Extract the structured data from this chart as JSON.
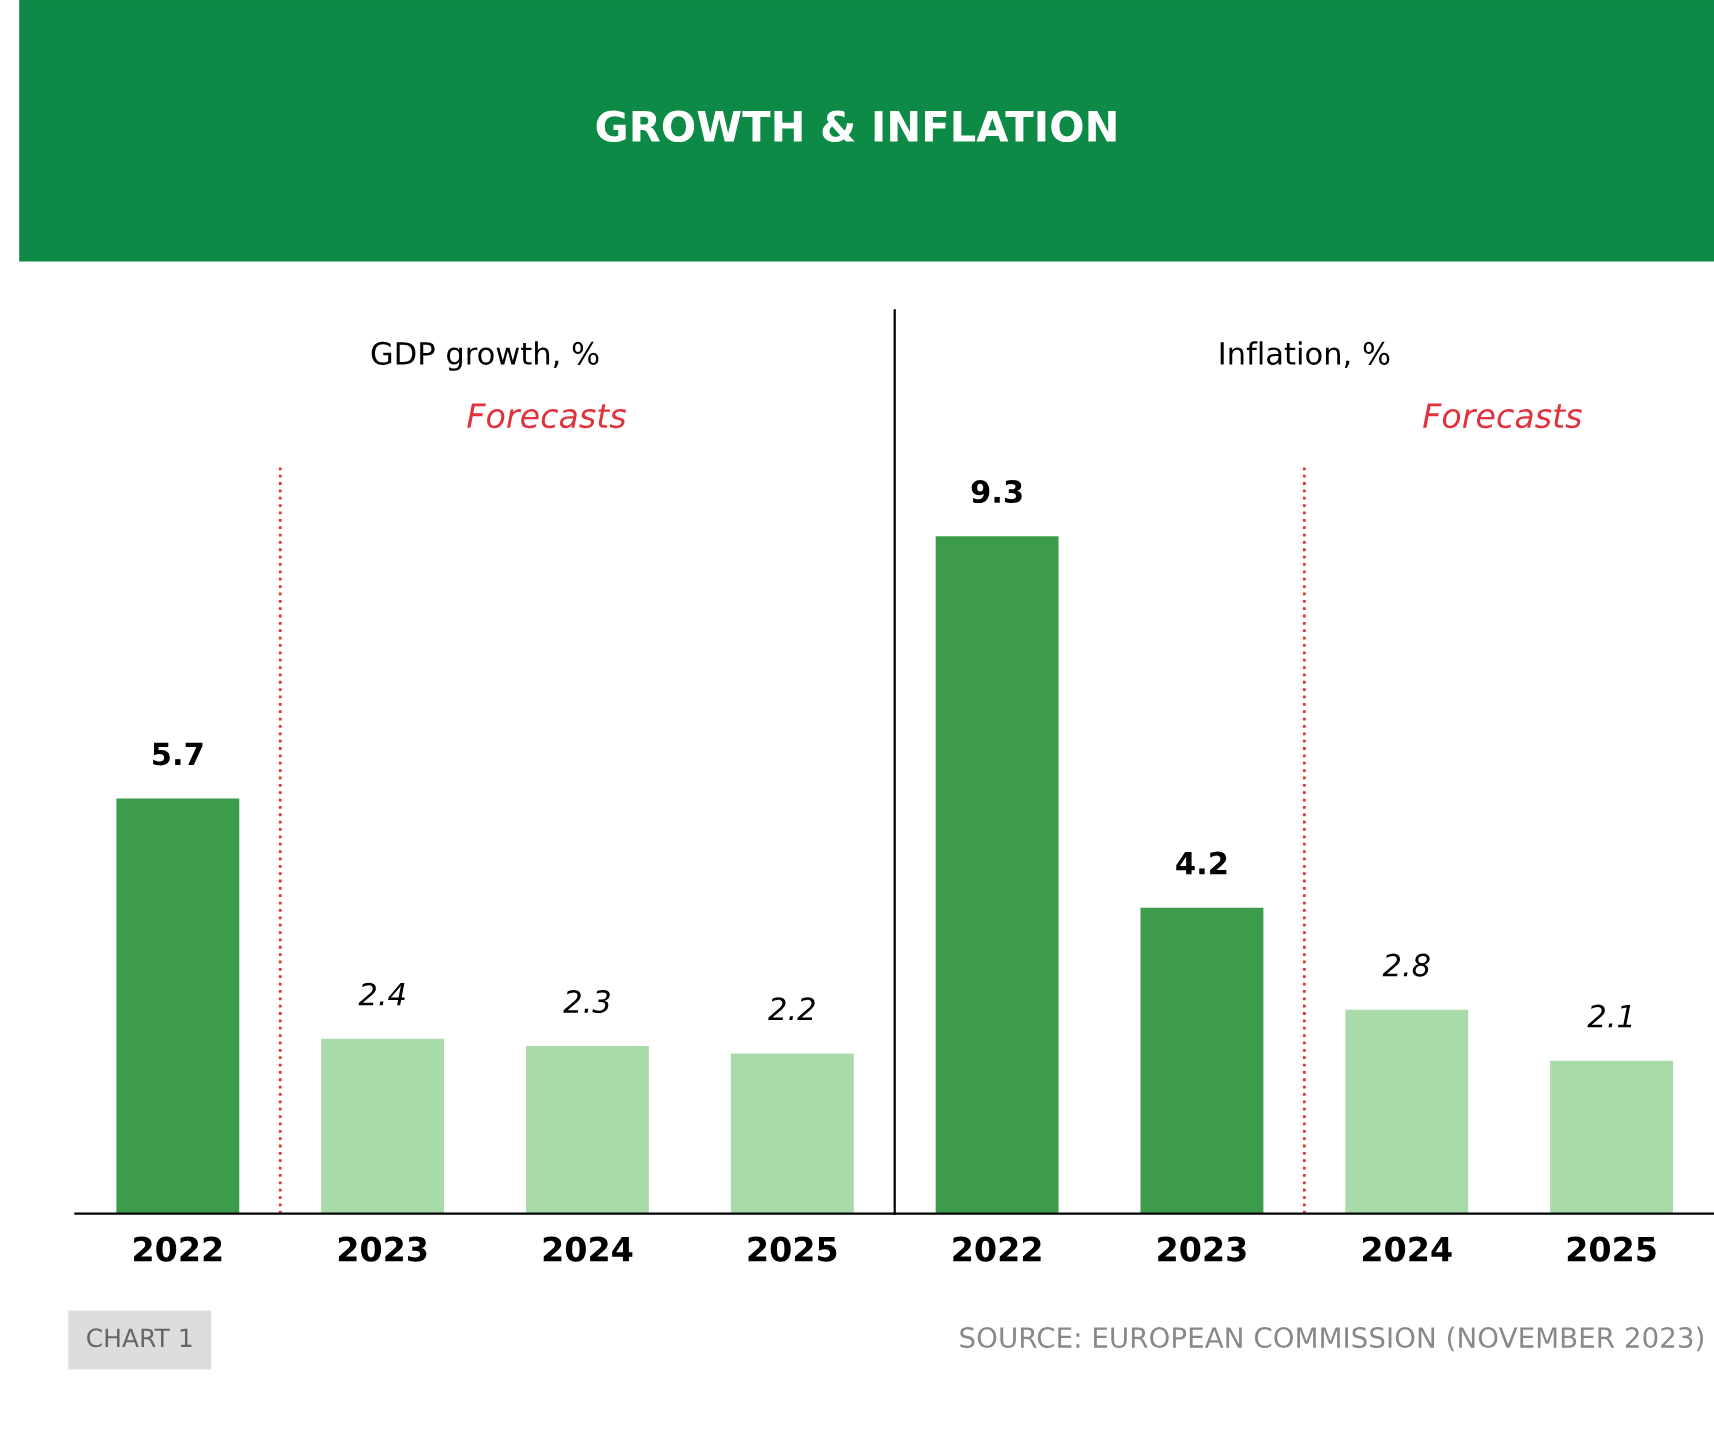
{
  "chart_data": [
    {
      "type": "bar",
      "title": "GROWTH & INFLATION",
      "subtitle": "GDP growth, %",
      "categories": [
        "2022",
        "2023",
        "2024",
        "2025"
      ],
      "values": [
        5.7,
        2.4,
        2.3,
        2.2
      ],
      "colors": [
        "#3d9b4c",
        "#a9dbaa",
        "#a9dbaa",
        "#a9dbaa"
      ],
      "data_labels": true,
      "ref_lines": [
        {
          "axis": "x",
          "value": "2023",
          "label": "Forecasts",
          "color": "#e0323c",
          "line_style": "dotted"
        }
      ],
      "annotations": [
        "CHART 1"
      ]
    },
    {
      "type": "bar",
      "subtitle": "Inflation, %",
      "categories": [
        "2022",
        "2023",
        "2024",
        "2025"
      ],
      "values": [
        9.3,
        4.2,
        2.8,
        2.1
      ],
      "colors": [
        "#3d9b4c",
        "#3d9b4c",
        "#a9dbaa",
        "#a9dbaa"
      ],
      "data_labels": true,
      "ref_lines": [
        {
          "axis": "x",
          "value": "2024",
          "label": "Forecasts",
          "color": "#e0323c",
          "line_style": "dotted"
        }
      ],
      "annotations": [
        "SOURCE: EUROPEAN COMMISSION (NOVEMBER 2023)"
      ]
    }
  ]
}
